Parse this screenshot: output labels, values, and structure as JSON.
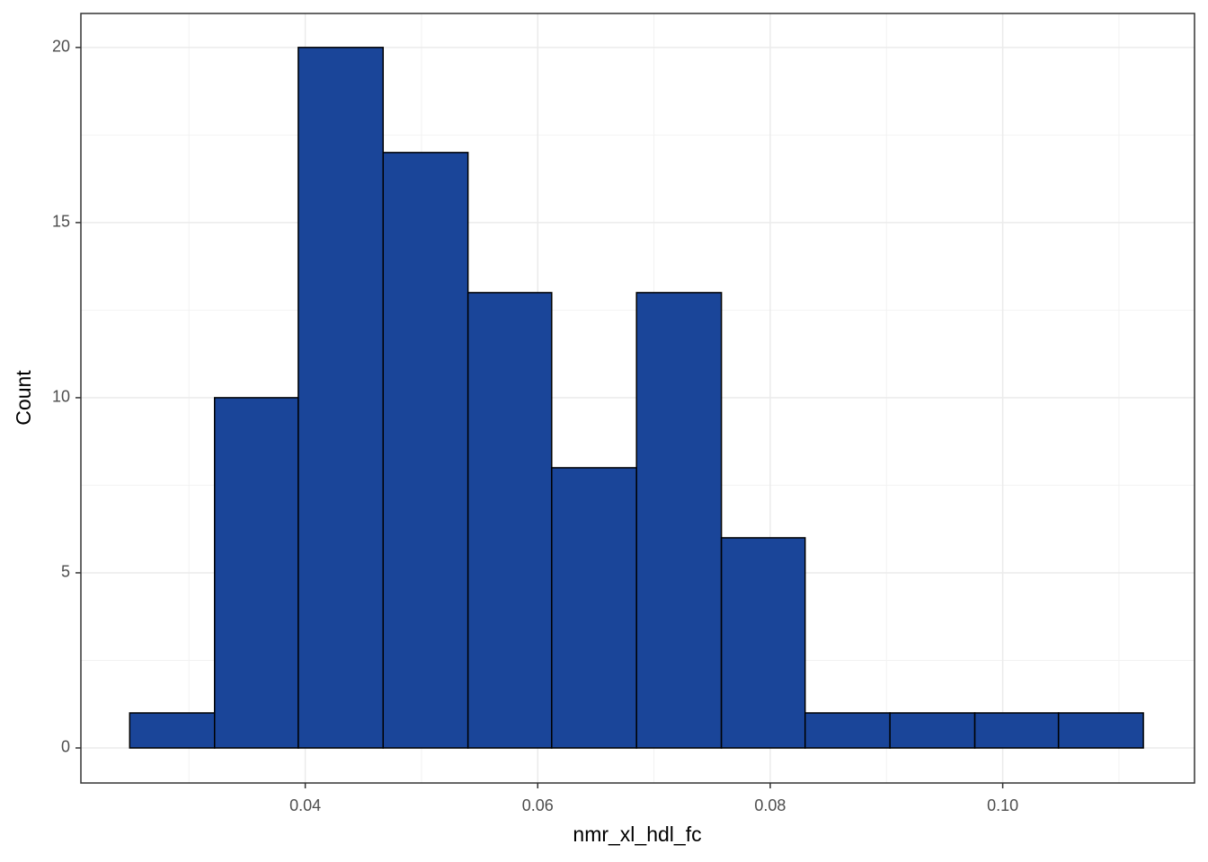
{
  "chart_data": {
    "type": "histogram",
    "x_label": "nmr_xl_hdl_fc",
    "y_label": "Count",
    "bins": [
      0.0249,
      0.0322,
      0.0394,
      0.0467,
      0.054,
      0.0612,
      0.0685,
      0.0758,
      0.083,
      0.0903,
      0.0976,
      0.1048,
      0.1121
    ],
    "values": [
      1,
      10,
      20,
      17,
      13,
      8,
      13,
      6,
      1,
      1,
      1,
      1
    ],
    "color": "#1a4599",
    "edge_color": "#000000",
    "xlim": [
      0.0207,
      0.1165
    ],
    "xticks": [
      0.04,
      0.06,
      0.08,
      {
        "value": 0.1,
        "label": "0.10"
      }
    ],
    "ylim": [
      -1,
      20.97
    ],
    "yticks": [
      0,
      5,
      10,
      15,
      20
    ],
    "grid": true
  }
}
